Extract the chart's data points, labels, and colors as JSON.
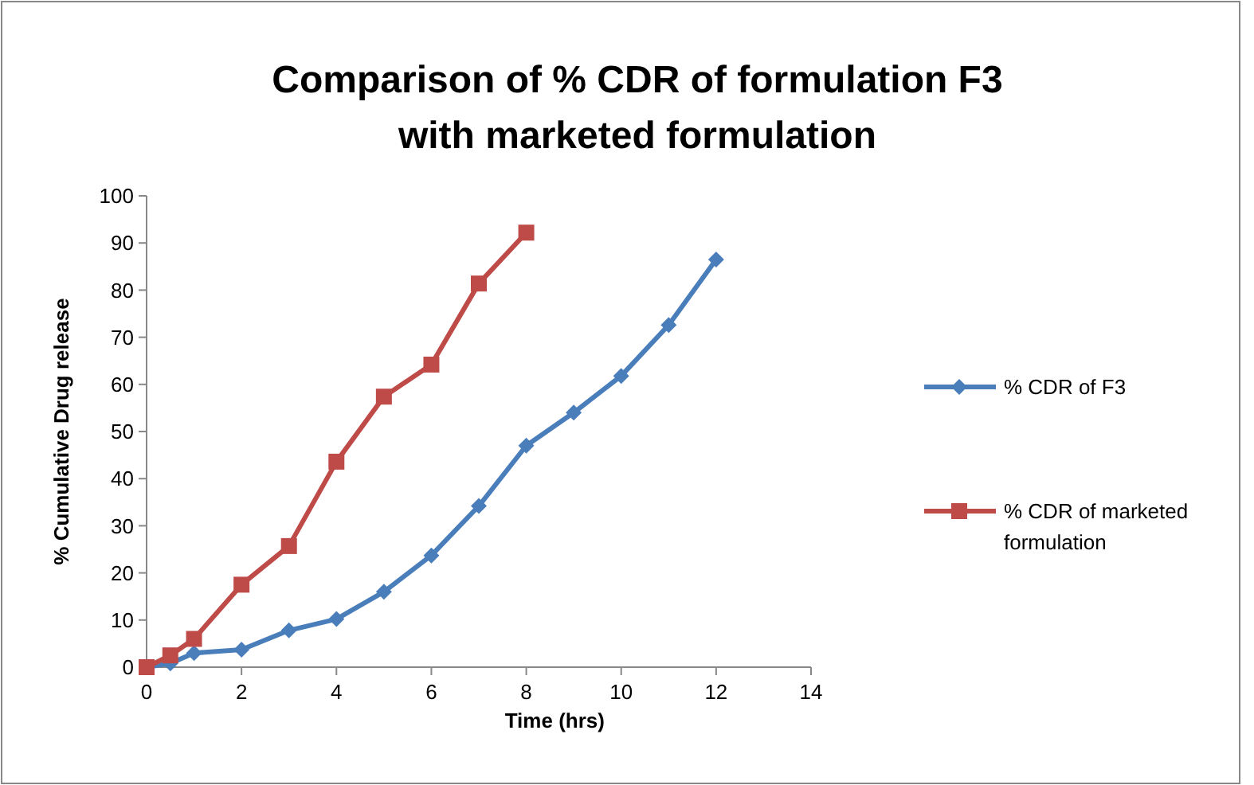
{
  "chart_data": {
    "type": "line",
    "title": "Comparison of % CDR of formulation F3 with marketed formulation",
    "xlabel": "Time (hrs)",
    "ylabel": "% Cumulative Drug release",
    "xlim": [
      0,
      14
    ],
    "xticks": [
      0,
      2,
      4,
      6,
      8,
      10,
      12,
      14
    ],
    "ylim": [
      0,
      100
    ],
    "yticks": [
      0,
      10,
      20,
      30,
      40,
      50,
      60,
      70,
      80,
      90,
      100
    ],
    "grid": false,
    "legend": "right",
    "series": [
      {
        "name": "% CDR of F3",
        "color": "#4a7ebb",
        "marker": "diamond",
        "x": [
          0,
          0.5,
          1,
          2,
          3,
          4,
          5,
          6,
          7,
          8,
          9,
          10,
          11,
          12
        ],
        "values": [
          0,
          0.8,
          3,
          3.7,
          7.8,
          10.2,
          16,
          23.7,
          34.2,
          47,
          54,
          61.8,
          72.6,
          86.5
        ]
      },
      {
        "name": "% CDR of marketed formulation",
        "color": "#be4b48",
        "marker": "square",
        "x": [
          0,
          0.5,
          1,
          2,
          3,
          4,
          5,
          6,
          7,
          8
        ],
        "values": [
          0,
          2.5,
          6,
          17.5,
          25.7,
          43.6,
          57.4,
          64.2,
          81.4,
          92.2
        ]
      }
    ]
  }
}
